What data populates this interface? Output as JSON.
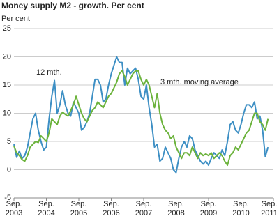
{
  "chart_data": {
    "type": "line",
    "title": "Money supply M2 - growth. Per cent",
    "y_label": "Per cent",
    "categories": [
      "Sep. 2003",
      null,
      null,
      null,
      null,
      null,
      null,
      null,
      null,
      null,
      null,
      null,
      "Sep. 2004",
      null,
      null,
      null,
      null,
      null,
      null,
      null,
      null,
      null,
      null,
      null,
      "Sep. 2005",
      null,
      null,
      null,
      null,
      null,
      null,
      null,
      null,
      null,
      null,
      null,
      "Sep. 2006",
      null,
      null,
      null,
      null,
      null,
      null,
      null,
      null,
      null,
      null,
      null,
      "Sep. 2007",
      null,
      null,
      null,
      null,
      null,
      null,
      null,
      null,
      null,
      null,
      null,
      "Sep. 2008",
      null,
      null,
      null,
      null,
      null,
      null,
      null,
      null,
      null,
      null,
      null,
      "Sep. 2009",
      null,
      null,
      null,
      null,
      null,
      null,
      null,
      null,
      null,
      null,
      null,
      "Sep. 2010",
      null,
      null,
      null,
      null,
      null,
      null,
      null,
      null,
      null,
      null,
      null,
      "Sep. 2011"
    ],
    "series": [
      {
        "name": "12 mth.",
        "color": "#3d8fc4",
        "values": [
          4.5,
          2.2,
          3.3,
          2.0,
          2.5,
          4.0,
          6.5,
          9.0,
          10.0,
          7.0,
          5.0,
          3.5,
          4.0,
          9.0,
          13.0,
          15.8,
          10.0,
          11.5,
          14.0,
          11.5,
          10.0,
          9.5,
          12.0,
          11.0,
          10.0,
          7.0,
          7.5,
          8.5,
          10.0,
          13.0,
          16.0,
          16.0,
          15.0,
          12.0,
          12.5,
          15.0,
          17.0,
          18.5,
          20.0,
          19.0,
          19.0,
          15.0,
          18.0,
          17.0,
          17.5,
          18.0,
          16.0,
          13.0,
          12.5,
          15.0,
          11.0,
          8.0,
          4.0,
          4.5,
          1.5,
          2.0,
          4.0,
          3.0,
          2.0,
          0.0,
          -0.5,
          2.0,
          4.0,
          5.0,
          4.0,
          6.0,
          5.5,
          3.5,
          2.5,
          1.5,
          1.0,
          1.5,
          0.8,
          2.0,
          3.0,
          2.5,
          2.0,
          3.5,
          2.5,
          5.0,
          8.0,
          8.5,
          7.0,
          6.5,
          8.0,
          10.0,
          11.5,
          11.5,
          11.0,
          12.0,
          9.0,
          9.5,
          7.0,
          2.3,
          4.0,
          null,
          null
        ]
      },
      {
        "name": "3 mth. moving average",
        "color": "#6cb33c",
        "values": [
          4.2,
          3.0,
          2.5,
          1.8,
          1.5,
          2.5,
          4.0,
          4.5,
          5.0,
          4.8,
          6.0,
          5.5,
          5.0,
          6.5,
          9.0,
          8.5,
          8.0,
          9.5,
          10.2,
          9.8,
          9.5,
          10.5,
          11.5,
          13.0,
          11.5,
          10.0,
          9.0,
          8.5,
          9.5,
          10.5,
          11.0,
          12.0,
          11.5,
          11.0,
          12.0,
          13.0,
          13.5,
          14.5,
          15.5,
          17.0,
          17.5,
          16.5,
          15.0,
          16.0,
          17.0,
          17.5,
          17.5,
          16.0,
          15.0,
          16.0,
          15.0,
          13.0,
          11.0,
          13.5,
          10.0,
          8.0,
          7.0,
          6.5,
          5.5,
          6.0,
          4.0,
          3.0,
          2.0,
          3.0,
          3.0,
          2.5,
          4.0,
          3.0,
          2.0,
          3.0,
          2.5,
          2.8,
          2.5,
          3.0,
          2.0,
          2.5,
          3.0,
          2.5,
          1.5,
          0.8,
          2.5,
          3.0,
          4.0,
          3.5,
          4.5,
          5.5,
          6.5,
          7.0,
          8.5,
          10.0,
          10.0,
          8.5,
          8.0,
          7.0,
          9.0,
          null,
          null
        ]
      }
    ],
    "ylim": [
      -5,
      25
    ],
    "yticks": [
      -5,
      0,
      5,
      10,
      15,
      20,
      25
    ],
    "grid": true
  }
}
